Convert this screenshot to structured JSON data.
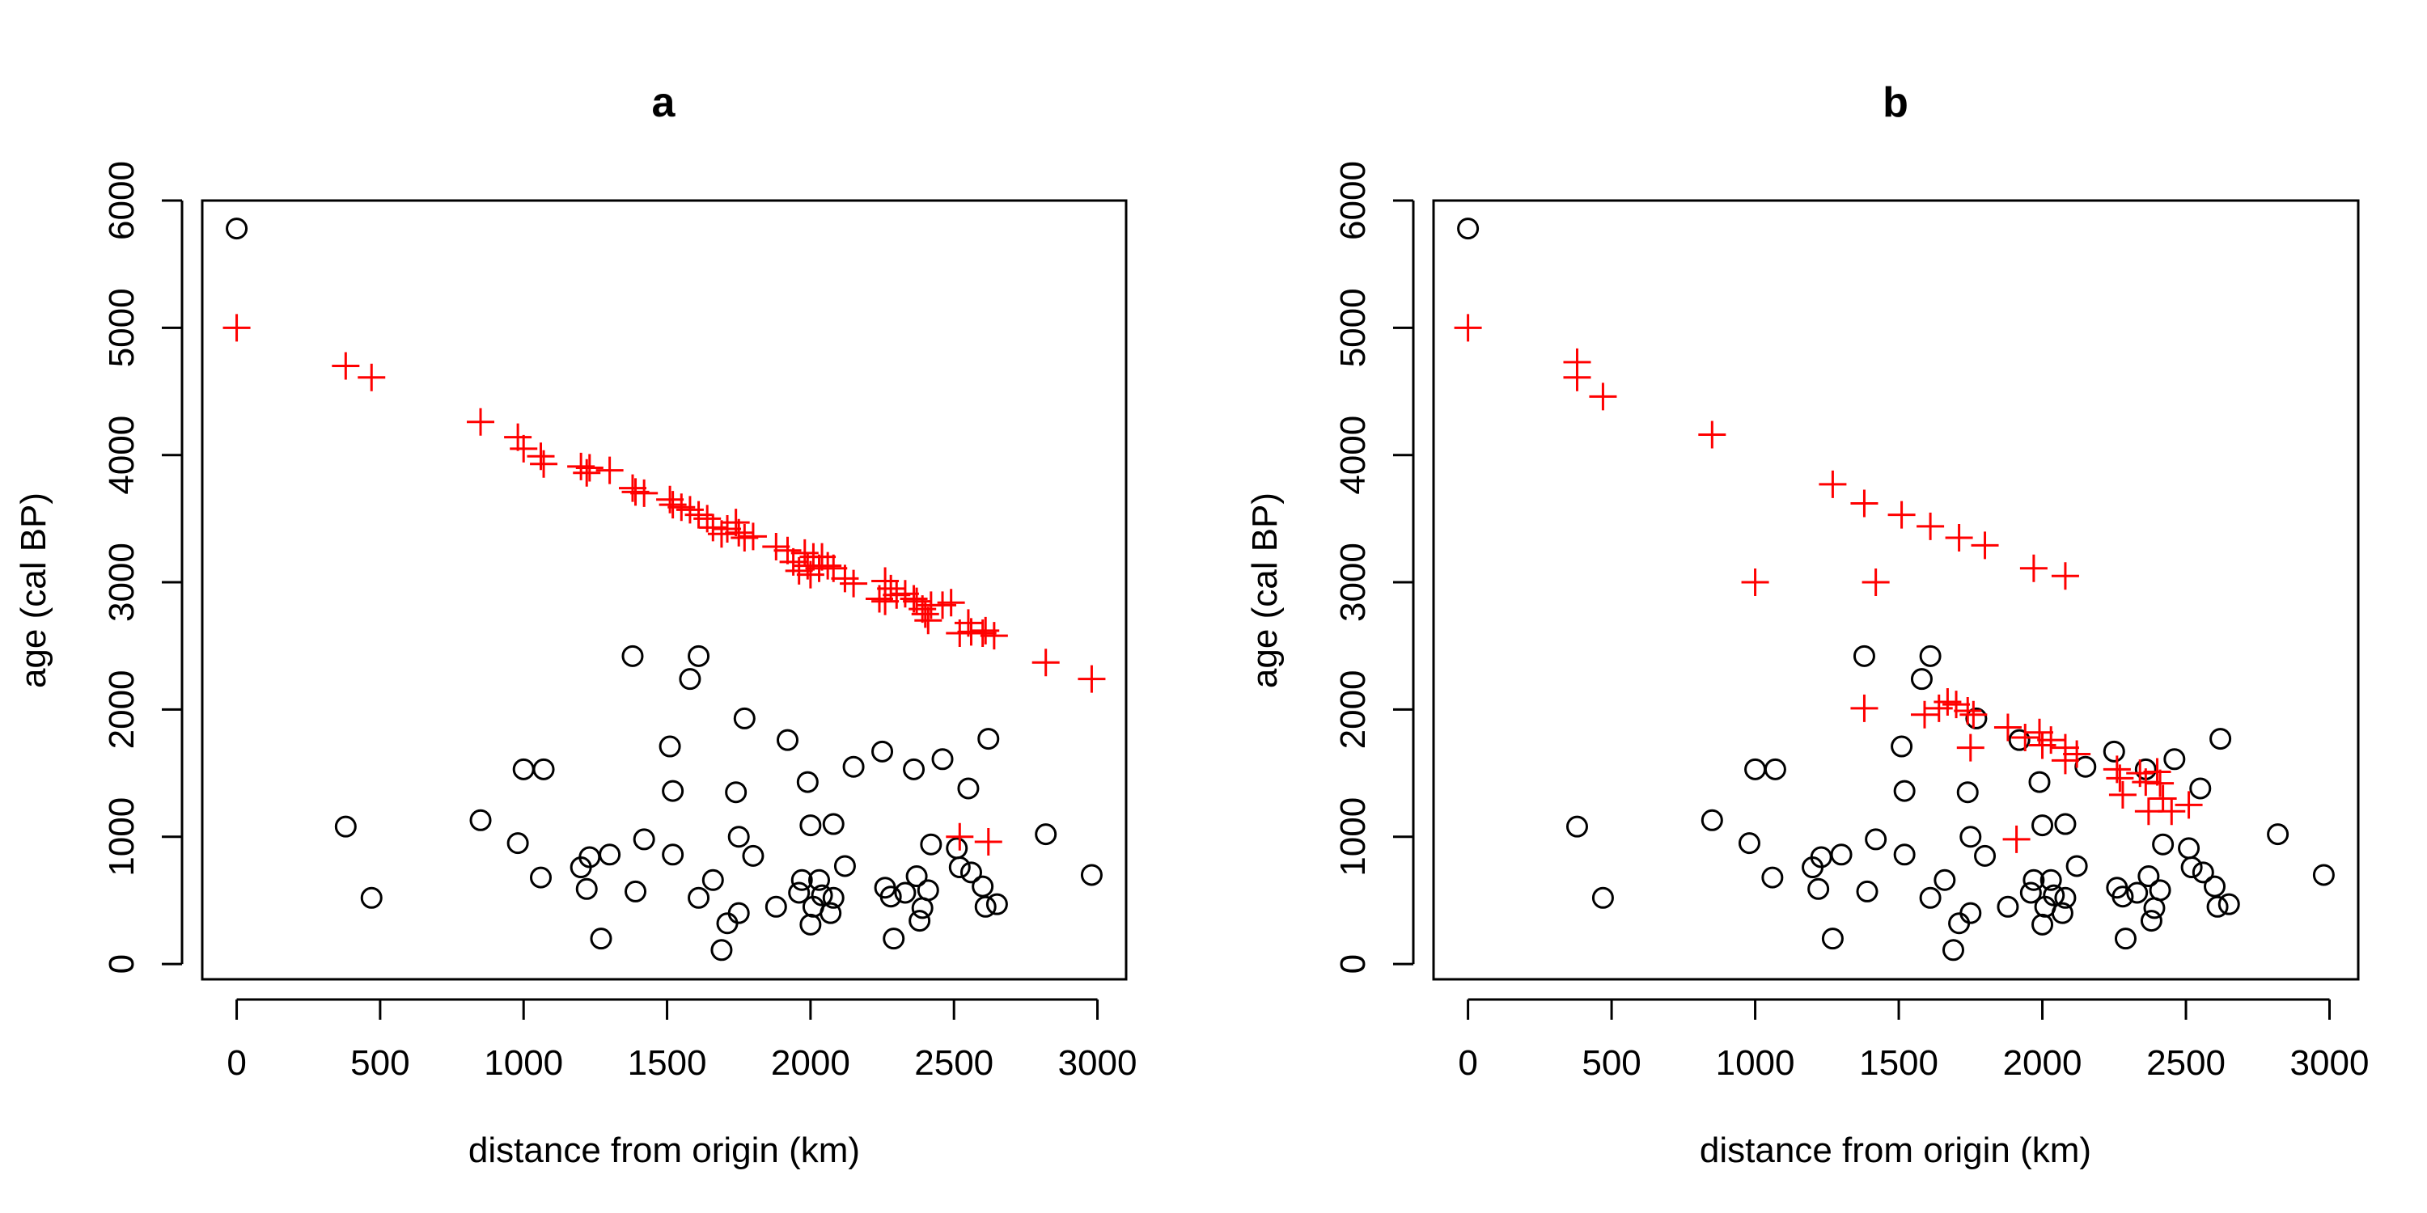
{
  "chart_data": [
    {
      "type": "scatter",
      "title": "a",
      "xlabel": "distance from origin (km)",
      "ylabel": "age (cal BP)",
      "xlim": [
        -120,
        3100
      ],
      "ylim": [
        -120,
        6000
      ],
      "xticks": [
        0,
        500,
        1000,
        1500,
        2000,
        2500,
        3000
      ],
      "yticks": [
        0,
        1000,
        2000,
        3000,
        4000,
        5000,
        6000
      ],
      "grid": false,
      "series": [
        {
          "marker": "circle",
          "color": "#000000",
          "points": [
            [
              0,
              5780
            ],
            [
              380,
              1080
            ],
            [
              470,
              520
            ],
            [
              850,
              1130
            ],
            [
              980,
              950
            ],
            [
              1000,
              1530
            ],
            [
              1060,
              680
            ],
            [
              1070,
              1530
            ],
            [
              1200,
              760
            ],
            [
              1220,
              590
            ],
            [
              1230,
              840
            ],
            [
              1270,
              200
            ],
            [
              1300,
              860
            ],
            [
              1380,
              2420
            ],
            [
              1390,
              570
            ],
            [
              1420,
              980
            ],
            [
              1510,
              1710
            ],
            [
              1520,
              1360
            ],
            [
              1520,
              860
            ],
            [
              1580,
              2240
            ],
            [
              1610,
              520
            ],
            [
              1610,
              2420
            ],
            [
              1660,
              660
            ],
            [
              1690,
              110
            ],
            [
              1710,
              320
            ],
            [
              1740,
              1350
            ],
            [
              1750,
              1000
            ],
            [
              1750,
              400
            ],
            [
              1770,
              1930
            ],
            [
              1800,
              850
            ],
            [
              1880,
              450
            ],
            [
              1920,
              1760
            ],
            [
              1960,
              560
            ],
            [
              1970,
              660
            ],
            [
              1990,
              1430
            ],
            [
              2000,
              310
            ],
            [
              2000,
              1090
            ],
            [
              2010,
              450
            ],
            [
              2030,
              660
            ],
            [
              2040,
              540
            ],
            [
              2070,
              400
            ],
            [
              2080,
              1100
            ],
            [
              2080,
              520
            ],
            [
              2120,
              770
            ],
            [
              2150,
              1550
            ],
            [
              2250,
              1670
            ],
            [
              2260,
              600
            ],
            [
              2280,
              530
            ],
            [
              2290,
              200
            ],
            [
              2330,
              560
            ],
            [
              2360,
              1530
            ],
            [
              2370,
              690
            ],
            [
              2380,
              340
            ],
            [
              2390,
              440
            ],
            [
              2410,
              580
            ],
            [
              2420,
              940
            ],
            [
              2460,
              1610
            ],
            [
              2510,
              910
            ],
            [
              2520,
              760
            ],
            [
              2550,
              1380
            ],
            [
              2560,
              720
            ],
            [
              2600,
              610
            ],
            [
              2610,
              450
            ],
            [
              2620,
              1770
            ],
            [
              2650,
              470
            ],
            [
              2820,
              1020
            ],
            [
              2980,
              700
            ]
          ]
        },
        {
          "marker": "plus",
          "color": "#ff0000",
          "points": [
            [
              0,
              5000
            ],
            [
              380,
              4700
            ],
            [
              470,
              4610
            ],
            [
              850,
              4260
            ],
            [
              980,
              4140
            ],
            [
              1000,
              4050
            ],
            [
              1060,
              3990
            ],
            [
              1070,
              3930
            ],
            [
              1200,
              3910
            ],
            [
              1220,
              3860
            ],
            [
              1230,
              3900
            ],
            [
              1300,
              3880
            ],
            [
              1380,
              3740
            ],
            [
              1390,
              3710
            ],
            [
              1420,
              3700
            ],
            [
              1510,
              3650
            ],
            [
              1520,
              3610
            ],
            [
              1550,
              3590
            ],
            [
              1580,
              3570
            ],
            [
              1610,
              3530
            ],
            [
              1640,
              3500
            ],
            [
              1660,
              3430
            ],
            [
              1690,
              3380
            ],
            [
              1710,
              3420
            ],
            [
              1740,
              3470
            ],
            [
              1750,
              3390
            ],
            [
              1770,
              3350
            ],
            [
              1800,
              3360
            ],
            [
              1880,
              3280
            ],
            [
              1920,
              3250
            ],
            [
              1940,
              3160
            ],
            [
              1960,
              3090
            ],
            [
              1980,
              3230
            ],
            [
              1990,
              3130
            ],
            [
              2000,
              3060
            ],
            [
              2010,
              3200
            ],
            [
              2030,
              3110
            ],
            [
              2040,
              3200
            ],
            [
              2060,
              3130
            ],
            [
              2080,
              3110
            ],
            [
              2120,
              3030
            ],
            [
              2150,
              2990
            ],
            [
              2240,
              2870
            ],
            [
              2260,
              2850
            ],
            [
              2260,
              3010
            ],
            [
              2280,
              2950
            ],
            [
              2300,
              2900
            ],
            [
              2330,
              2910
            ],
            [
              2360,
              2870
            ],
            [
              2370,
              2850
            ],
            [
              2390,
              2790
            ],
            [
              2400,
              2750
            ],
            [
              2410,
              2700
            ],
            [
              2420,
              2820
            ],
            [
              2460,
              2820
            ],
            [
              2490,
              2840
            ],
            [
              2520,
              2600
            ],
            [
              2550,
              2680
            ],
            [
              2560,
              2610
            ],
            [
              2600,
              2600
            ],
            [
              2610,
              2620
            ],
            [
              2640,
              2580
            ],
            [
              2820,
              2370
            ],
            [
              2980,
              2240
            ],
            [
              2520,
              1000
            ],
            [
              2620,
              960
            ]
          ]
        }
      ]
    },
    {
      "type": "scatter",
      "title": "b",
      "xlabel": "distance from origin (km)",
      "ylabel": "age (cal BP)",
      "xlim": [
        -120,
        3100
      ],
      "ylim": [
        -120,
        6000
      ],
      "xticks": [
        0,
        500,
        1000,
        1500,
        2000,
        2500,
        3000
      ],
      "yticks": [
        0,
        1000,
        2000,
        3000,
        4000,
        5000,
        6000
      ],
      "grid": false,
      "series": [
        {
          "marker": "circle",
          "color": "#000000",
          "points": [
            [
              0,
              5780
            ],
            [
              380,
              1080
            ],
            [
              470,
              520
            ],
            [
              850,
              1130
            ],
            [
              980,
              950
            ],
            [
              1000,
              1530
            ],
            [
              1060,
              680
            ],
            [
              1070,
              1530
            ],
            [
              1200,
              760
            ],
            [
              1220,
              590
            ],
            [
              1230,
              840
            ],
            [
              1270,
              200
            ],
            [
              1300,
              860
            ],
            [
              1380,
              2420
            ],
            [
              1390,
              570
            ],
            [
              1420,
              980
            ],
            [
              1510,
              1710
            ],
            [
              1520,
              1360
            ],
            [
              1520,
              860
            ],
            [
              1580,
              2240
            ],
            [
              1610,
              520
            ],
            [
              1610,
              2420
            ],
            [
              1660,
              660
            ],
            [
              1690,
              110
            ],
            [
              1710,
              320
            ],
            [
              1740,
              1350
            ],
            [
              1750,
              1000
            ],
            [
              1750,
              400
            ],
            [
              1770,
              1930
            ],
            [
              1800,
              850
            ],
            [
              1880,
              450
            ],
            [
              1920,
              1760
            ],
            [
              1960,
              560
            ],
            [
              1970,
              660
            ],
            [
              1990,
              1430
            ],
            [
              2000,
              310
            ],
            [
              2000,
              1090
            ],
            [
              2010,
              450
            ],
            [
              2030,
              660
            ],
            [
              2040,
              540
            ],
            [
              2070,
              400
            ],
            [
              2080,
              1100
            ],
            [
              2080,
              520
            ],
            [
              2120,
              770
            ],
            [
              2150,
              1550
            ],
            [
              2250,
              1670
            ],
            [
              2260,
              600
            ],
            [
              2280,
              530
            ],
            [
              2290,
              200
            ],
            [
              2330,
              560
            ],
            [
              2360,
              1530
            ],
            [
              2370,
              690
            ],
            [
              2380,
              340
            ],
            [
              2390,
              440
            ],
            [
              2410,
              580
            ],
            [
              2420,
              940
            ],
            [
              2460,
              1610
            ],
            [
              2510,
              910
            ],
            [
              2520,
              760
            ],
            [
              2550,
              1380
            ],
            [
              2560,
              720
            ],
            [
              2600,
              610
            ],
            [
              2610,
              450
            ],
            [
              2620,
              1770
            ],
            [
              2650,
              470
            ],
            [
              2820,
              1020
            ],
            [
              2980,
              700
            ]
          ]
        },
        {
          "marker": "plus",
          "color": "#ff0000",
          "points": [
            [
              0,
              5000
            ],
            [
              380,
              4730
            ],
            [
              380,
              4610
            ],
            [
              470,
              4460
            ],
            [
              850,
              4160
            ],
            [
              1000,
              3000
            ],
            [
              1270,
              3770
            ],
            [
              1380,
              3620
            ],
            [
              1420,
              3000
            ],
            [
              1510,
              3530
            ],
            [
              1610,
              3440
            ],
            [
              1710,
              3350
            ],
            [
              1800,
              3290
            ],
            [
              1970,
              3110
            ],
            [
              2080,
              3050
            ],
            [
              1380,
              2010
            ],
            [
              1590,
              1960
            ],
            [
              1640,
              2010
            ],
            [
              1670,
              2060
            ],
            [
              1700,
              2040
            ],
            [
              1740,
              1990
            ],
            [
              1760,
              1960
            ],
            [
              1750,
              1700
            ],
            [
              1880,
              1860
            ],
            [
              1910,
              980
            ],
            [
              1940,
              1780
            ],
            [
              1990,
              1820
            ],
            [
              2000,
              1720
            ],
            [
              2030,
              1760
            ],
            [
              2080,
              1700
            ],
            [
              2080,
              1600
            ],
            [
              2120,
              1650
            ],
            [
              2260,
              1530
            ],
            [
              2270,
              1460
            ],
            [
              2280,
              1330
            ],
            [
              2340,
              1500
            ],
            [
              2360,
              1430
            ],
            [
              2370,
              1200
            ],
            [
              2400,
              1510
            ],
            [
              2410,
              1420
            ],
            [
              2420,
              1300
            ],
            [
              2450,
              1200
            ],
            [
              2510,
              1250
            ]
          ]
        }
      ]
    }
  ]
}
